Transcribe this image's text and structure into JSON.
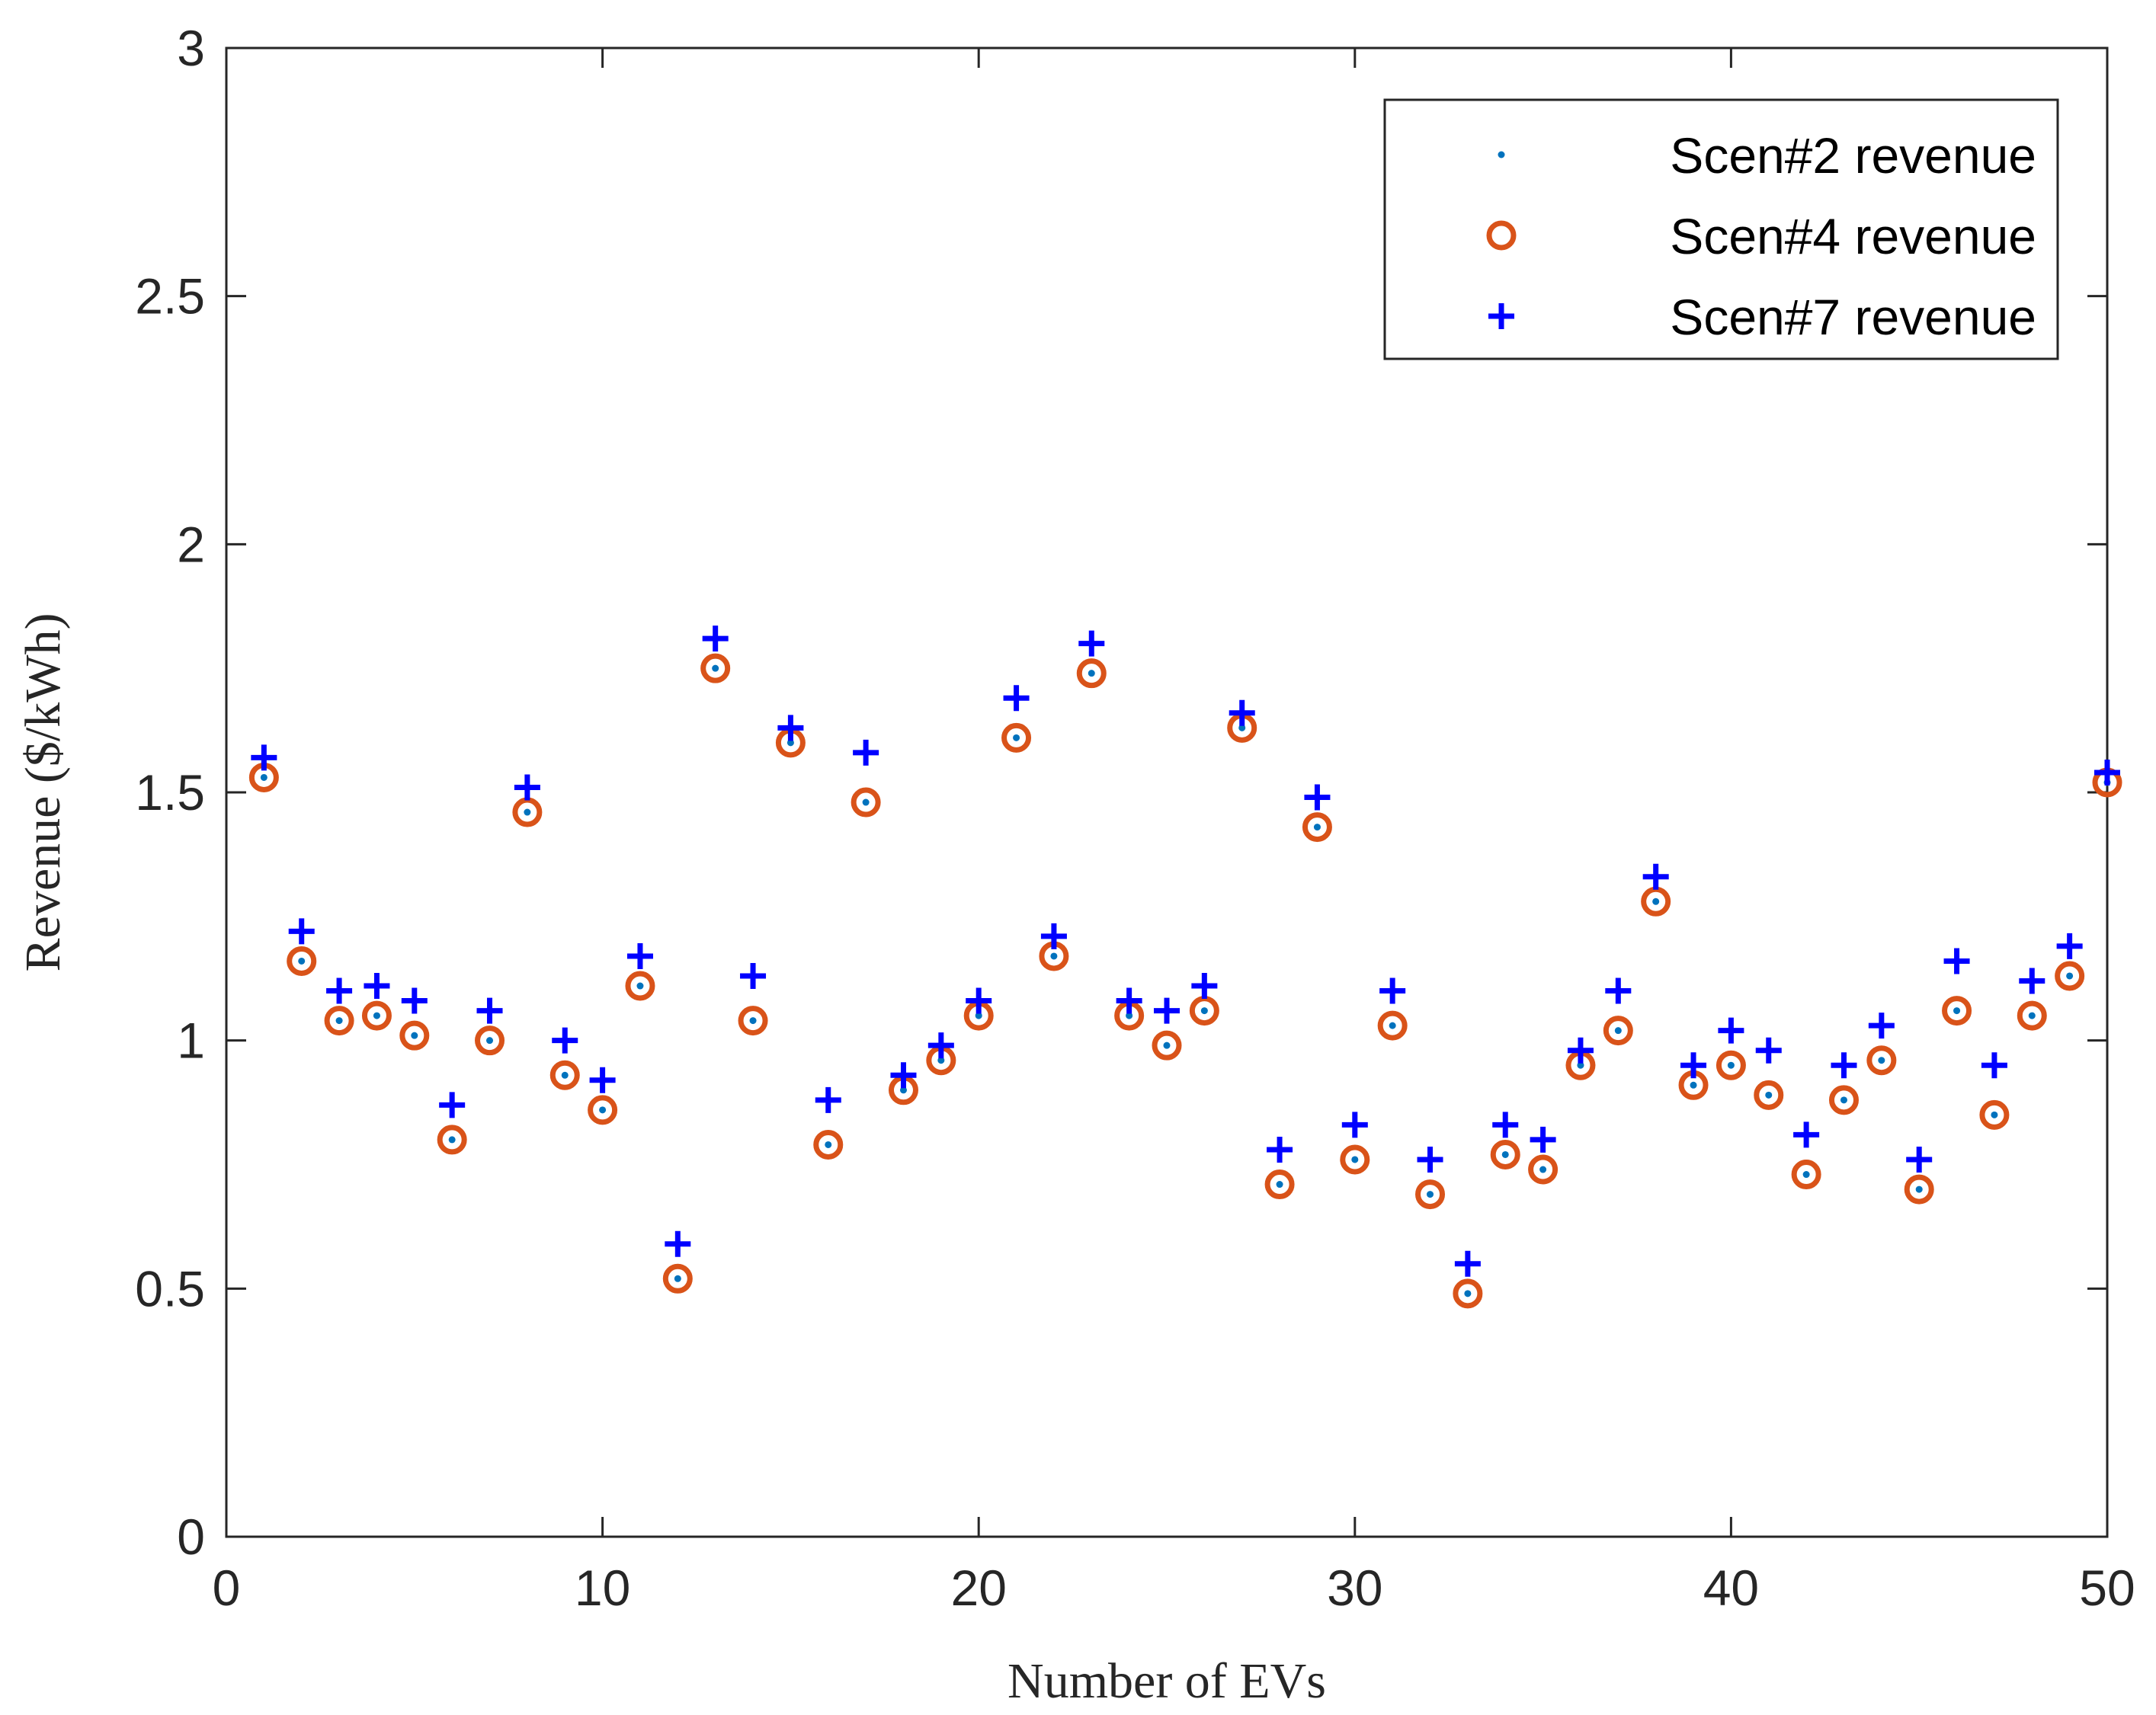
{
  "chart_data": {
    "type": "scatter",
    "title": "",
    "xlabel": "Number of EVs",
    "ylabel": "Revenue ($/kWh)",
    "xlim": [
      0,
      50
    ],
    "ylim": [
      0,
      3
    ],
    "xticks": [
      0,
      10,
      20,
      30,
      40,
      50
    ],
    "xtick_labels": [
      "0",
      "10",
      "20",
      "30",
      "40",
      "50"
    ],
    "yticks": [
      0,
      0.5,
      1,
      1.5,
      2,
      2.5,
      3
    ],
    "ytick_labels": [
      "0",
      "0.5",
      "1",
      "1.5",
      "2",
      "2.5",
      "3"
    ],
    "grid": false,
    "legend_position": "top-right",
    "x": [
      1,
      2,
      3,
      4,
      5,
      6,
      7,
      8,
      9,
      10,
      11,
      12,
      13,
      14,
      15,
      16,
      17,
      18,
      19,
      20,
      21,
      22,
      23,
      24,
      25,
      26,
      27,
      28,
      29,
      30,
      31,
      32,
      33,
      34,
      35,
      36,
      37,
      38,
      39,
      40,
      41,
      42,
      43,
      44,
      45,
      46,
      47,
      48,
      49,
      50
    ],
    "series": [
      {
        "name": "Scen#2 revenue",
        "marker": "dot",
        "color": "#0072BD",
        "values": [
          1.53,
          1.16,
          1.04,
          1.05,
          1.01,
          0.8,
          1.0,
          1.46,
          0.93,
          0.86,
          1.11,
          0.52,
          1.75,
          1.04,
          1.6,
          0.79,
          1.48,
          0.9,
          0.96,
          1.05,
          1.61,
          1.17,
          1.74,
          1.05,
          0.99,
          1.06,
          1.63,
          0.71,
          1.43,
          0.76,
          1.03,
          0.69,
          0.49,
          0.77,
          0.74,
          0.95,
          1.02,
          1.28,
          0.91,
          0.95,
          0.89,
          0.73,
          0.88,
          0.96,
          0.7,
          1.06,
          0.85,
          1.05,
          1.13,
          1.52
        ]
      },
      {
        "name": "Scen#4 revenue",
        "marker": "circle",
        "color": "#D95319",
        "values": [
          1.53,
          1.16,
          1.04,
          1.05,
          1.01,
          0.8,
          1.0,
          1.46,
          0.93,
          0.86,
          1.11,
          0.52,
          1.75,
          1.04,
          1.6,
          0.79,
          1.48,
          0.9,
          0.96,
          1.05,
          1.61,
          1.17,
          1.74,
          1.05,
          0.99,
          1.06,
          1.63,
          0.71,
          1.43,
          0.76,
          1.03,
          0.69,
          0.49,
          0.77,
          0.74,
          0.95,
          1.02,
          1.28,
          0.91,
          0.95,
          0.89,
          0.73,
          0.88,
          0.96,
          0.7,
          1.06,
          0.85,
          1.05,
          1.13,
          1.52
        ]
      },
      {
        "name": "Scen#7 revenue",
        "marker": "plus",
        "color": "#0000FF",
        "values": [
          1.57,
          1.22,
          1.1,
          1.11,
          1.08,
          0.87,
          1.06,
          1.51,
          1.0,
          0.92,
          1.17,
          0.59,
          1.81,
          1.13,
          1.63,
          0.88,
          1.58,
          0.93,
          0.99,
          1.08,
          1.69,
          1.21,
          1.8,
          1.08,
          1.06,
          1.11,
          1.66,
          0.78,
          1.49,
          0.83,
          1.1,
          0.76,
          0.55,
          0.83,
          0.8,
          0.98,
          1.1,
          1.33,
          0.95,
          1.02,
          0.98,
          0.81,
          0.95,
          1.03,
          0.76,
          1.16,
          0.95,
          1.12,
          1.19,
          1.54
        ]
      }
    ]
  }
}
